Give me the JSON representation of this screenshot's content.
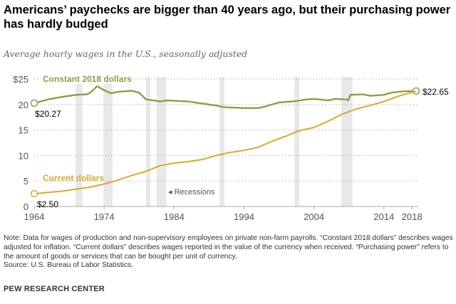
{
  "title": "Americans’ paychecks are bigger than 40 years ago, but their purchasing power has hardly budged",
  "subtitle": "Average hourly wages in the U.S., seasonally adjusted",
  "note": "Note: Data for wages of production and non-supervisory employees on private non-farm payrolls. “Constant 2018 dollars” describes wages adjusted for inflation. “Current dollars” describes wages reported in the value of the currency when received. “Purchasing power” refers to the amount of goods or services that can be bought per unit of currency.",
  "source": "Source: U.S. Bureau of Labor Statistics.",
  "brand": "PEW RESEARCH CENTER",
  "colors": {
    "constant": "#939c45",
    "current": "#dba92b",
    "recession": "#e8e8e8",
    "grid": "#999999"
  },
  "chart_data": {
    "type": "line",
    "title": "Average hourly wages in the U.S., seasonally adjusted",
    "xlabel": "",
    "ylabel": "",
    "xlim": [
      1964,
      2018.6
    ],
    "ylim": [
      0,
      25
    ],
    "x_ticks": [
      1964,
      1974,
      1984,
      1994,
      2004,
      2014,
      2018
    ],
    "y_ticks": [
      {
        "v": 0,
        "label": "0"
      },
      {
        "v": 5,
        "label": "5"
      },
      {
        "v": 10,
        "label": "10"
      },
      {
        "v": 15,
        "label": "15"
      },
      {
        "v": 20,
        "label": "20"
      },
      {
        "v": 25,
        "label": "$25"
      }
    ],
    "grid": true,
    "recessions_label": "Recessions",
    "recessions": [
      [
        1969.9,
        1970.9
      ],
      [
        1973.9,
        1975.2
      ],
      [
        1980.0,
        1980.6
      ],
      [
        1981.5,
        1982.9
      ],
      [
        1990.5,
        1991.2
      ],
      [
        2001.2,
        2001.9
      ],
      [
        2007.9,
        2009.5
      ]
    ],
    "series": [
      {
        "name": "Constant 2018 dollars",
        "key": "constant",
        "start_label": "$20.27",
        "end_label": "$22.65",
        "points": [
          [
            1964,
            20.27
          ],
          [
            1966,
            21.0
          ],
          [
            1968,
            21.5
          ],
          [
            1970,
            21.9
          ],
          [
            1971.5,
            22.0
          ],
          [
            1972,
            22.3
          ],
          [
            1973,
            23.6
          ],
          [
            1974,
            22.8
          ],
          [
            1975,
            22.2
          ],
          [
            1976,
            22.5
          ],
          [
            1977,
            22.6
          ],
          [
            1978,
            22.7
          ],
          [
            1979,
            22.3
          ],
          [
            1980,
            21.0
          ],
          [
            1981,
            20.8
          ],
          [
            1982,
            20.6
          ],
          [
            1983,
            20.8
          ],
          [
            1986,
            20.6
          ],
          [
            1988,
            20.2
          ],
          [
            1990,
            19.8
          ],
          [
            1991,
            19.5
          ],
          [
            1994,
            19.3
          ],
          [
            1996,
            19.3
          ],
          [
            1997,
            19.6
          ],
          [
            1999,
            20.4
          ],
          [
            2001,
            20.6
          ],
          [
            2003,
            21.0
          ],
          [
            2004,
            21.1
          ],
          [
            2005.5,
            20.9
          ],
          [
            2006,
            20.8
          ],
          [
            2007,
            21.1
          ],
          [
            2008.5,
            21.0
          ],
          [
            2008.9,
            20.8
          ],
          [
            2009.2,
            21.9
          ],
          [
            2011,
            22.0
          ],
          [
            2012,
            21.7
          ],
          [
            2013,
            21.8
          ],
          [
            2014,
            21.9
          ],
          [
            2015,
            22.3
          ],
          [
            2016,
            22.5
          ],
          [
            2017,
            22.6
          ],
          [
            2018.6,
            22.65
          ]
        ]
      },
      {
        "name": "Current dollars",
        "key": "current",
        "start_label": "$2.50",
        "points": [
          [
            1964,
            2.5
          ],
          [
            1968,
            3.0
          ],
          [
            1972,
            3.8
          ],
          [
            1974,
            4.4
          ],
          [
            1976,
            5.2
          ],
          [
            1978,
            6.1
          ],
          [
            1980,
            6.9
          ],
          [
            1982,
            8.0
          ],
          [
            1984,
            8.5
          ],
          [
            1986,
            8.8
          ],
          [
            1988,
            9.2
          ],
          [
            1990,
            10.0
          ],
          [
            1992,
            10.6
          ],
          [
            1994,
            11.0
          ],
          [
            1996,
            11.6
          ],
          [
            1998,
            12.8
          ],
          [
            2000,
            13.8
          ],
          [
            2002,
            14.9
          ],
          [
            2004,
            15.5
          ],
          [
            2006,
            16.7
          ],
          [
            2008,
            18.1
          ],
          [
            2010,
            19.1
          ],
          [
            2012,
            19.8
          ],
          [
            2014,
            20.6
          ],
          [
            2016,
            21.6
          ],
          [
            2018.6,
            22.65
          ]
        ]
      }
    ]
  }
}
